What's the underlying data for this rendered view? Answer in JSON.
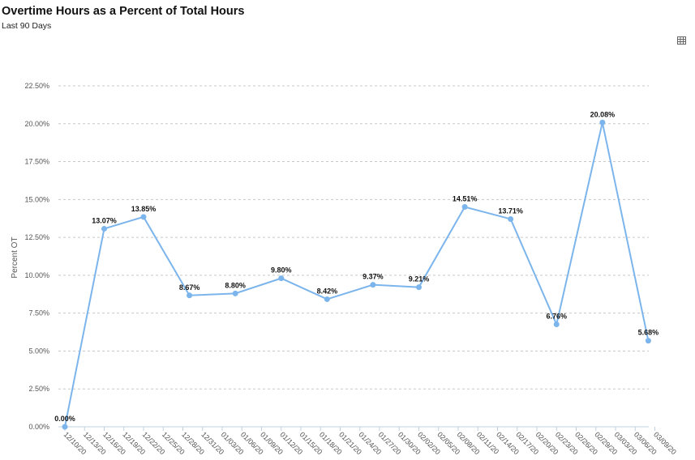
{
  "header": {
    "title": "Overtime Hours as a Percent of Total Hours",
    "subtitle": "Last 90 Days"
  },
  "toolbar": {
    "table_icon": "table-grid-icon"
  },
  "chart_data": {
    "type": "line",
    "title": "Overtime Hours as a Percent of Total Hours",
    "subtitle": "Last 90 Days",
    "ylabel": "Percent OT",
    "xlabel": "",
    "ylim": [
      0,
      22.5
    ],
    "yticks": [
      0,
      2.5,
      5,
      7.5,
      10,
      12.5,
      15,
      17.5,
      20,
      22.5
    ],
    "ytick_labels": [
      "0.00%",
      "2.50%",
      "5.00%",
      "7.50%",
      "10.00%",
      "12.50%",
      "15.00%",
      "17.50%",
      "20.00%",
      "22.50%"
    ],
    "grid": true,
    "line_color": "#7cb5ec",
    "x_tick_labels": [
      "12/10/20",
      "12/13/20",
      "12/16/20",
      "12/19/20",
      "12/22/20",
      "12/25/20",
      "12/28/20",
      "12/31/20",
      "01/03/20",
      "01/06/20",
      "01/09/20",
      "01/12/20",
      "01/15/20",
      "01/18/20",
      "01/21/20",
      "01/24/20",
      "01/27/20",
      "01/30/20",
      "02/02/20",
      "02/05/20",
      "02/08/20",
      "02/11/20",
      "02/14/20",
      "02/17/20",
      "02/20/20",
      "02/23/20",
      "02/26/20",
      "02/29/20",
      "03/03/20",
      "03/06/20",
      "03/09/20"
    ],
    "points": [
      {
        "x": "12/10",
        "y": 0.0,
        "label": "0.00%"
      },
      {
        "x": "12/16",
        "y": 13.07,
        "label": "13.07%"
      },
      {
        "x": "12/22",
        "y": 13.85,
        "label": "13.85%"
      },
      {
        "x": "12/29",
        "y": 8.67,
        "label": "8.67%"
      },
      {
        "x": "01/05",
        "y": 8.8,
        "label": "8.80%"
      },
      {
        "x": "01/12",
        "y": 9.8,
        "label": "9.80%"
      },
      {
        "x": "01/19",
        "y": 8.42,
        "label": "8.42%"
      },
      {
        "x": "01/26",
        "y": 9.37,
        "label": "9.37%"
      },
      {
        "x": "02/02",
        "y": 9.21,
        "label": "9.21%"
      },
      {
        "x": "02/09",
        "y": 14.51,
        "label": "14.51%"
      },
      {
        "x": "02/16",
        "y": 13.71,
        "label": "13.71%"
      },
      {
        "x": "02/23",
        "y": 6.76,
        "label": "6.76%"
      },
      {
        "x": "03/01",
        "y": 20.08,
        "label": "20.08%"
      },
      {
        "x": "03/08",
        "y": 5.68,
        "label": "5.68%"
      }
    ]
  }
}
